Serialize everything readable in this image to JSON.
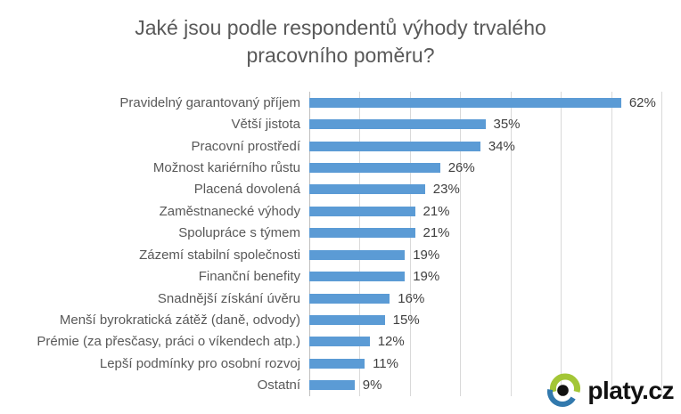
{
  "chart_data": {
    "type": "bar",
    "orientation": "horizontal",
    "title": "Jaké jsou podle respondentů výhody trvalého pracovního poměru?",
    "title_line1": "Jaké jsou podle respondentů výhody trvalého",
    "title_line2": "pracovního poměru?",
    "categories": [
      "Pravidelný garantovaný příjem",
      "Větší jistota",
      "Pracovní prostředí",
      "Možnost kariérního růstu",
      "Placená dovolená",
      "Zaměstnanecké výhody",
      "Spolupráce s týmem",
      "Zázemí stabilní společnosti",
      "Finanční benefity",
      "Snadnější získání úvěru",
      "Menší byrokratická zátěž (daně, odvody)",
      "Prémie (za přesčasy, práci o víkendech atp.)",
      "Lepší podmínky pro osobní rozvoj",
      "Ostatní"
    ],
    "values": [
      62,
      35,
      34,
      26,
      23,
      21,
      21,
      19,
      19,
      16,
      15,
      12,
      11,
      9
    ],
    "value_suffix": "%",
    "xlabel": "",
    "ylabel": "",
    "xlim": [
      0,
      70
    ],
    "gridline_step": 10,
    "grid": true,
    "legend": false,
    "data_labels": true
  },
  "colors": {
    "bar": "#5b9bd5",
    "gridline": "#d9d9d9",
    "axis": "#bfbfbf",
    "title_text": "#595959",
    "label_text": "#595959",
    "value_text": "#404040",
    "logo_green": "#a3c636",
    "logo_blue": "#3279ad",
    "logo_black": "#111111"
  },
  "logo": {
    "text": "platy.cz",
    "icon": "eye-icon"
  }
}
